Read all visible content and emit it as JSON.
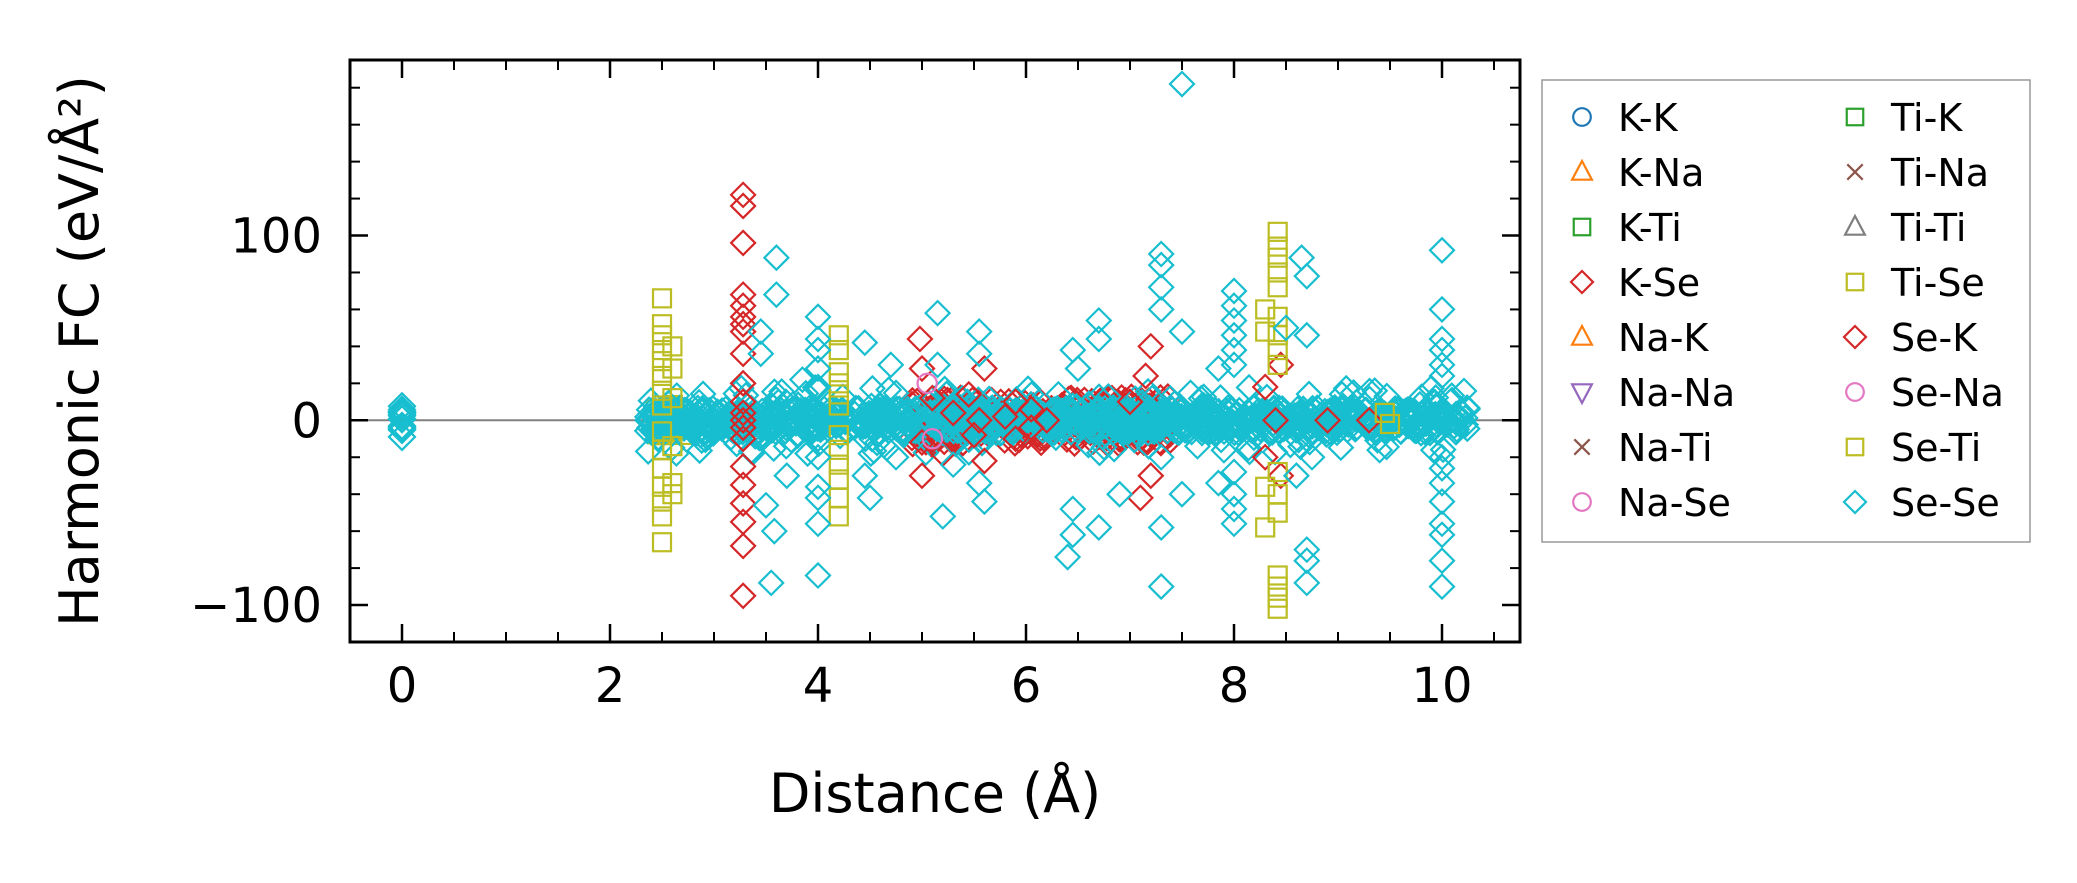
{
  "chart_data": {
    "type": "scatter",
    "title": "",
    "xlabel": "Distance (Å)",
    "ylabel": "Harmonic FC (eV/Å²)",
    "xlim": [
      -0.5,
      10.75
    ],
    "ylim": [
      -120,
      195
    ],
    "xticks": [
      0,
      2,
      4,
      6,
      8,
      10
    ],
    "xtick_labels": [
      "0",
      "2",
      "4",
      "6",
      "8",
      "10"
    ],
    "yticks": [
      -100,
      0,
      100
    ],
    "ytick_labels": [
      "−100",
      "0",
      "100"
    ],
    "grid": false,
    "legend_position": "outside-right",
    "legend_columns": 2,
    "series": [
      {
        "name": "K-K",
        "marker": "circle",
        "color": "#1f77b4",
        "points": []
      },
      {
        "name": "K-Na",
        "marker": "triangle-up",
        "color": "#ff7f0e",
        "points": []
      },
      {
        "name": "K-Ti",
        "marker": "square",
        "color": "#2ca02c",
        "points": []
      },
      {
        "name": "K-Se",
        "marker": "diamond",
        "color": "#d62728",
        "points": [
          [
            3.28,
            122
          ],
          [
            3.28,
            116
          ],
          [
            3.28,
            96
          ],
          [
            3.28,
            68
          ],
          [
            3.28,
            62
          ],
          [
            3.28,
            56
          ],
          [
            3.28,
            52
          ],
          [
            3.28,
            48
          ],
          [
            3.28,
            36
          ],
          [
            3.28,
            20
          ],
          [
            3.28,
            10
          ],
          [
            3.28,
            4
          ],
          [
            3.28,
            0
          ],
          [
            3.28,
            -4
          ],
          [
            3.28,
            -10
          ],
          [
            3.28,
            -25
          ],
          [
            3.28,
            -35
          ],
          [
            3.28,
            -45
          ],
          [
            3.28,
            -55
          ],
          [
            3.28,
            -68
          ],
          [
            3.28,
            -95
          ],
          [
            4.98,
            44
          ],
          [
            5.0,
            28
          ],
          [
            5.0,
            -12
          ],
          [
            5.0,
            -30
          ],
          [
            5.1,
            12
          ],
          [
            5.2,
            -18
          ],
          [
            5.3,
            4
          ],
          [
            5.45,
            14
          ],
          [
            5.5,
            -8
          ],
          [
            5.6,
            28
          ],
          [
            5.6,
            -22
          ],
          [
            5.55,
            0
          ],
          [
            5.8,
            2
          ],
          [
            5.9,
            10
          ],
          [
            5.9,
            -10
          ],
          [
            6.05,
            6
          ],
          [
            6.05,
            -4
          ],
          [
            6.2,
            0
          ],
          [
            7.0,
            10
          ],
          [
            7.1,
            -42
          ],
          [
            7.15,
            24
          ],
          [
            7.2,
            -30
          ],
          [
            7.2,
            40
          ],
          [
            8.3,
            18
          ],
          [
            8.3,
            -20
          ],
          [
            8.4,
            0
          ],
          [
            8.45,
            30
          ],
          [
            8.45,
            -30
          ],
          [
            8.9,
            0
          ],
          [
            9.3,
            0
          ]
        ]
      },
      {
        "name": "Na-K",
        "marker": "triangle-up",
        "color": "#ff7f0e",
        "points": []
      },
      {
        "name": "Na-Na",
        "marker": "triangle-down",
        "color": "#9467bd",
        "points": []
      },
      {
        "name": "Na-Ti",
        "marker": "x",
        "color": "#8c564b",
        "points": []
      },
      {
        "name": "Na-Se",
        "marker": "circle",
        "color": "#e377c2",
        "points": []
      },
      {
        "name": "Ti-K",
        "marker": "square",
        "color": "#2ca02c",
        "points": []
      },
      {
        "name": "Ti-Na",
        "marker": "x",
        "color": "#8c564b",
        "points": []
      },
      {
        "name": "Ti-Ti",
        "marker": "triangle-up",
        "color": "#7f7f7f",
        "points": []
      },
      {
        "name": "Ti-Se",
        "marker": "square",
        "color": "#bcbd22",
        "points": [
          [
            2.5,
            66
          ],
          [
            2.5,
            52
          ],
          [
            2.5,
            46
          ],
          [
            2.5,
            38
          ],
          [
            2.5,
            32
          ],
          [
            2.5,
            24
          ],
          [
            2.5,
            16
          ],
          [
            2.5,
            8
          ],
          [
            2.5,
            -6
          ],
          [
            2.5,
            -16
          ],
          [
            2.5,
            -26
          ],
          [
            2.5,
            -36
          ],
          [
            2.5,
            -44
          ],
          [
            2.5,
            -52
          ],
          [
            2.5,
            -66
          ],
          [
            2.6,
            40
          ],
          [
            2.6,
            28
          ],
          [
            2.6,
            12
          ],
          [
            2.6,
            -14
          ],
          [
            2.6,
            -34
          ],
          [
            2.6,
            -40
          ],
          [
            4.2,
            46
          ],
          [
            4.2,
            38
          ],
          [
            4.2,
            26
          ],
          [
            4.2,
            20
          ],
          [
            4.2,
            14
          ],
          [
            4.2,
            8
          ],
          [
            4.2,
            -8
          ],
          [
            4.2,
            -16
          ],
          [
            4.2,
            -24
          ],
          [
            4.2,
            -32
          ],
          [
            4.2,
            -42
          ],
          [
            4.2,
            -52
          ],
          [
            8.3,
            60
          ],
          [
            8.3,
            48
          ],
          [
            8.3,
            -36
          ],
          [
            8.3,
            -58
          ],
          [
            8.42,
            102
          ],
          [
            8.42,
            94
          ],
          [
            8.42,
            88
          ],
          [
            8.42,
            80
          ],
          [
            8.42,
            72
          ],
          [
            8.42,
            56
          ],
          [
            8.42,
            46
          ],
          [
            8.42,
            38
          ],
          [
            8.42,
            30
          ],
          [
            8.42,
            -28
          ],
          [
            8.42,
            -40
          ],
          [
            8.42,
            -50
          ],
          [
            8.42,
            -84
          ],
          [
            8.42,
            -90
          ],
          [
            8.42,
            -96
          ],
          [
            8.42,
            -102
          ],
          [
            9.45,
            4
          ],
          [
            9.5,
            -2
          ]
        ]
      },
      {
        "name": "Se-K",
        "marker": "diamond",
        "color": "#d62728",
        "points": []
      },
      {
        "name": "Se-Na",
        "marker": "circle",
        "color": "#e377c2",
        "points": [
          [
            5.05,
            20
          ],
          [
            5.1,
            -10
          ]
        ]
      },
      {
        "name": "Se-Ti",
        "marker": "square",
        "color": "#bcbd22",
        "points": []
      },
      {
        "name": "Se-Se",
        "marker": "diamond",
        "color": "#17becf",
        "points": [
          [
            3.45,
            48
          ],
          [
            3.45,
            36
          ],
          [
            3.5,
            -46
          ],
          [
            3.55,
            -88
          ],
          [
            3.58,
            -60
          ],
          [
            3.6,
            88
          ],
          [
            3.6,
            68
          ],
          [
            3.62,
            10
          ],
          [
            3.7,
            -30
          ],
          [
            3.85,
            22
          ],
          [
            3.9,
            -18
          ],
          [
            4.0,
            56
          ],
          [
            4.0,
            44
          ],
          [
            4.0,
            38
          ],
          [
            4.0,
            28
          ],
          [
            4.0,
            18
          ],
          [
            4.0,
            -10
          ],
          [
            4.0,
            -20
          ],
          [
            4.0,
            -36
          ],
          [
            4.0,
            -42
          ],
          [
            4.0,
            -56
          ],
          [
            4.0,
            -84
          ],
          [
            4.45,
            42
          ],
          [
            4.45,
            -30
          ],
          [
            4.5,
            -42
          ],
          [
            4.7,
            30
          ],
          [
            4.75,
            -20
          ],
          [
            5.15,
            58
          ],
          [
            5.15,
            30
          ],
          [
            5.2,
            -52
          ],
          [
            5.3,
            -24
          ],
          [
            5.55,
            48
          ],
          [
            5.55,
            36
          ],
          [
            5.55,
            -34
          ],
          [
            5.6,
            -44
          ],
          [
            6.4,
            -74
          ],
          [
            6.45,
            38
          ],
          [
            6.45,
            -48
          ],
          [
            6.45,
            -62
          ],
          [
            6.5,
            28
          ],
          [
            6.7,
            54
          ],
          [
            6.7,
            44
          ],
          [
            6.7,
            -58
          ],
          [
            6.9,
            -40
          ],
          [
            7.3,
            90
          ],
          [
            7.3,
            84
          ],
          [
            7.3,
            72
          ],
          [
            7.3,
            60
          ],
          [
            7.3,
            -20
          ],
          [
            7.3,
            -58
          ],
          [
            7.3,
            -90
          ],
          [
            7.5,
            182
          ],
          [
            7.5,
            48
          ],
          [
            7.5,
            -40
          ],
          [
            7.85,
            28
          ],
          [
            7.85,
            -34
          ],
          [
            8.0,
            70
          ],
          [
            8.0,
            62
          ],
          [
            8.0,
            54
          ],
          [
            8.0,
            46
          ],
          [
            8.0,
            38
          ],
          [
            8.0,
            30
          ],
          [
            8.0,
            -28
          ],
          [
            8.0,
            -40
          ],
          [
            8.0,
            -48
          ],
          [
            8.0,
            -56
          ],
          [
            8.5,
            50
          ],
          [
            8.6,
            -30
          ],
          [
            8.65,
            88
          ],
          [
            8.7,
            78
          ],
          [
            8.7,
            -70
          ],
          [
            8.7,
            -88
          ],
          [
            8.7,
            -76
          ],
          [
            8.7,
            46
          ],
          [
            8.75,
            -20
          ],
          [
            10.0,
            92
          ],
          [
            10.0,
            60
          ],
          [
            10.0,
            44
          ],
          [
            10.0,
            38
          ],
          [
            10.0,
            30
          ],
          [
            10.0,
            24
          ],
          [
            10.0,
            -20
          ],
          [
            10.0,
            -26
          ],
          [
            10.0,
            -34
          ],
          [
            10.0,
            -44
          ],
          [
            10.0,
            -56
          ],
          [
            10.0,
            -62
          ],
          [
            10.0,
            -76
          ],
          [
            10.0,
            -90
          ]
        ]
      }
    ]
  }
}
